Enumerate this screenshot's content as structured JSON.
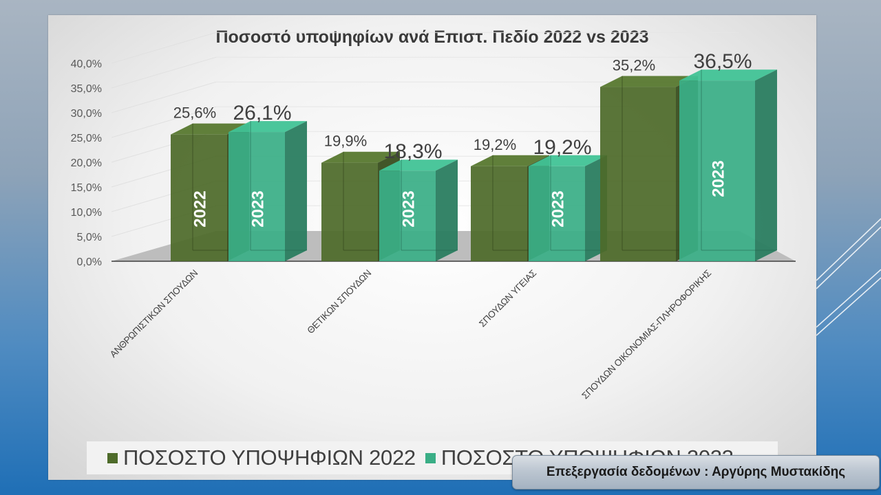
{
  "chart_data": {
    "type": "bar",
    "title": "Ποσοστό υποψηφίων ανά Επιστ. Πεδίο 2022 vs 2023",
    "categories": [
      "ΑΝΘΡΩΠΙΣΤΙΚΩΝ ΣΠΟΥΔΩΝ",
      "ΘΕΤΙΚΩΝ ΣΠΟΥΔΩΝ",
      "ΣΠΟΥΔΩΝ ΥΓΕΙΑΣ",
      "ΣΠΟΥΔΩΝ ΟΙΚΟΝΟΜΙΑΣ-ΠΛΗΡΟΦΟΡΙΚΗΣ"
    ],
    "series": [
      {
        "name": "ΠΟΣΟΣΤΟ ΥΠΟΨΗΦΙΩΝ 2022",
        "values": [
          25.6,
          19.9,
          19.2,
          35.2
        ],
        "labels": [
          "25,6%",
          "19,9%",
          "19,2%",
          "35,2%"
        ],
        "bar_text": "2022",
        "color": "#4e6b2a"
      },
      {
        "name": "ΠΟΣΟΣΤΟ ΥΠΟΨΗΦΙΩΝ 2023",
        "values": [
          26.1,
          18.3,
          19.2,
          36.5
        ],
        "labels": [
          "26,1%",
          "18,3%",
          "19,2%",
          "36,5%"
        ],
        "bar_text": "2023",
        "color": "#3aae86"
      }
    ],
    "inbar_labels": [
      [
        "2022",
        "2023"
      ],
      [
        "",
        "2023"
      ],
      [
        "",
        "2023"
      ],
      [
        "",
        "2023"
      ]
    ],
    "y_ticks": [
      "0,0%",
      "5,0%",
      "10,0%",
      "15,0%",
      "20,0%",
      "25,0%",
      "30,0%",
      "35,0%",
      "40,0%"
    ],
    "ylim": [
      0,
      40
    ],
    "style": "3d-column",
    "legend_position": "bottom",
    "grid": true
  },
  "legend": {
    "item1": "ΠΟΣΟΣΤΟ ΥΠΟΨΗΦΙΩΝ 2022",
    "item2": "ΠΟΣΟΣΤΟ ΥΠΟΨΗΦΙΩΝ 2023"
  },
  "credit": "Επεξεργασία δεδομένων : Αργύρης Μυστακίδης",
  "colors": {
    "series_2022": "#4e6b2a",
    "series_2023": "#3aae86"
  }
}
